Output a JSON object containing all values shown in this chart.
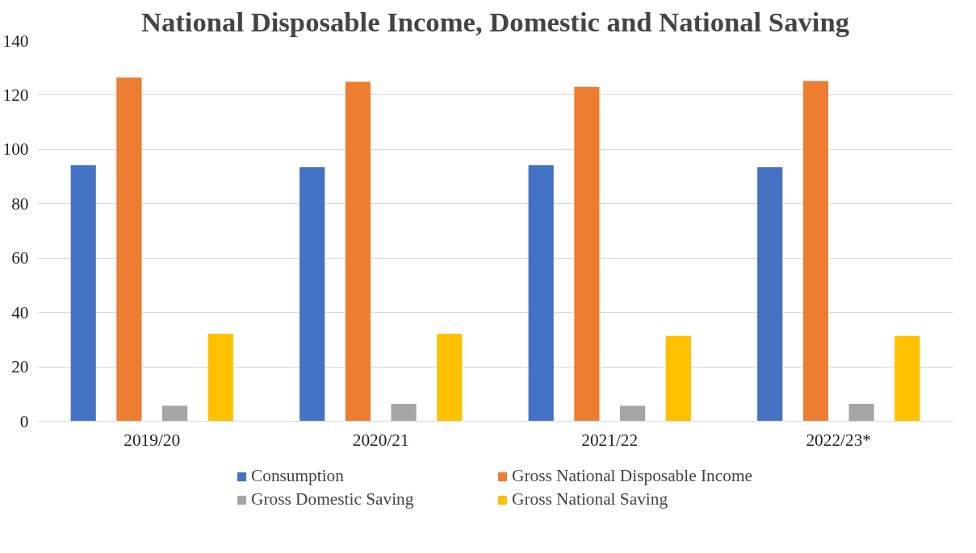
{
  "chart_data": {
    "type": "bar",
    "title": "National Disposable Income, Domestic and National Saving",
    "categories": [
      "2019/20",
      "2020/21",
      "2021/22",
      "2022/23*"
    ],
    "series": [
      {
        "name": "Consumption",
        "color": "#4472c4",
        "values": [
          94.2,
          93.5,
          94.2,
          93.5
        ]
      },
      {
        "name": "Gross National Disposable Income",
        "color": "#ed7d31",
        "values": [
          126.4,
          124.9,
          123.0,
          125.2
        ]
      },
      {
        "name": "Gross Domestic Saving",
        "color": "#a5a5a5",
        "values": [
          5.7,
          6.4,
          5.7,
          6.4
        ]
      },
      {
        "name": "Gross National Saving",
        "color": "#ffc000",
        "values": [
          32.2,
          32.2,
          31.4,
          31.4
        ]
      }
    ],
    "ylim": [
      0,
      140
    ],
    "yticks": [
      0,
      20,
      40,
      60,
      80,
      100,
      120,
      140
    ],
    "grid": "y",
    "legend": "bottom"
  }
}
